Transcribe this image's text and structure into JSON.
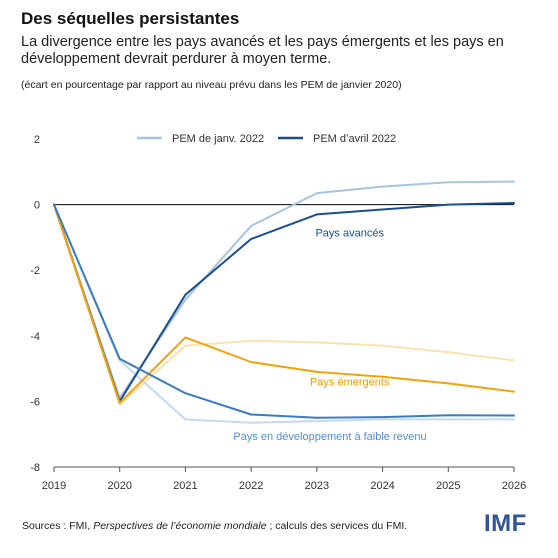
{
  "title": "Des séquelles persistantes",
  "subtitle": "La divergence entre les pays avancés et les pays émergents et les pays en développement devrait perdurer à moyen terme.",
  "note": "(écart en pourcentage par rapport au niveau prévu dans les PEM de janvier 2020)",
  "source": {
    "prefix": "Sources : FMI, ",
    "italic": "Perspectives de l’économie mondiale",
    "suffix": " ; calculs des services du FMI."
  },
  "logo": "IMF",
  "chart_data": {
    "type": "line",
    "x": [
      2019,
      2020,
      2021,
      2022,
      2023,
      2024,
      2025,
      2026
    ],
    "xticks": [
      "2019",
      "2020",
      "2021",
      "2022",
      "2023",
      "2024",
      "2025",
      "2026"
    ],
    "yticks": [
      "2",
      "0",
      "-2",
      "-4",
      "-6",
      "-8"
    ],
    "ytick_values": [
      2,
      0,
      -2,
      -4,
      -6,
      -8
    ],
    "ylim": [
      -8,
      2
    ],
    "grid": false,
    "legend": {
      "placement": "top-center",
      "entries": [
        {
          "label": "PEM de janv. 2022",
          "color": "#a8c4df"
        },
        {
          "label": "PEM d’avril 2022",
          "color": "#1a4f8b"
        }
      ]
    },
    "series": [
      {
        "group": "Pays avancés",
        "vintage": "PEM de janv. 2022",
        "color": "#a8c4df",
        "values": [
          0,
          -5.9,
          -2.9,
          -0.65,
          0.35,
          0.55,
          0.68,
          0.7
        ]
      },
      {
        "group": "Pays avancés",
        "vintage": "PEM d’avril 2022",
        "color": "#1a4f8b",
        "values": [
          0,
          -6.0,
          -2.75,
          -1.05,
          -0.3,
          -0.15,
          0.0,
          0.05
        ]
      },
      {
        "group": "Pays émergents",
        "vintage": "PEM de janv. 2022",
        "color": "#fbe2b0",
        "values": [
          0,
          -6.1,
          -4.3,
          -4.15,
          -4.2,
          -4.3,
          -4.5,
          -4.75
        ]
      },
      {
        "group": "Pays émergents",
        "vintage": "PEM d’avril 2022",
        "color": "#f0a30a",
        "values": [
          0,
          -6.05,
          -4.05,
          -4.8,
          -5.1,
          -5.25,
          -5.45,
          -5.7
        ]
      },
      {
        "group": "Pays en développement à faible revenu",
        "vintage": "PEM de janv. 2022",
        "color": "#c5daee",
        "values": [
          0,
          -4.75,
          -6.55,
          -6.65,
          -6.6,
          -6.55,
          -6.55,
          -6.55
        ]
      },
      {
        "group": "Pays en développement à faible revenu",
        "vintage": "PEM d’avril 2022",
        "color": "#3a7cc0",
        "values": [
          0,
          -4.7,
          -5.75,
          -6.4,
          -6.5,
          -6.48,
          -6.42,
          -6.43
        ]
      }
    ],
    "annotations": [
      {
        "text": "Pays avancés",
        "x": 2023.5,
        "y": -0.85,
        "color": "#1a4f8b"
      },
      {
        "text": "Pays émergents",
        "x": 2023.5,
        "y": -5.4,
        "color": "#e8a000"
      },
      {
        "text": "Pays en développement à faible revenu",
        "x": 2023.2,
        "y": -7.05,
        "color": "#4f8fcf"
      }
    ]
  }
}
